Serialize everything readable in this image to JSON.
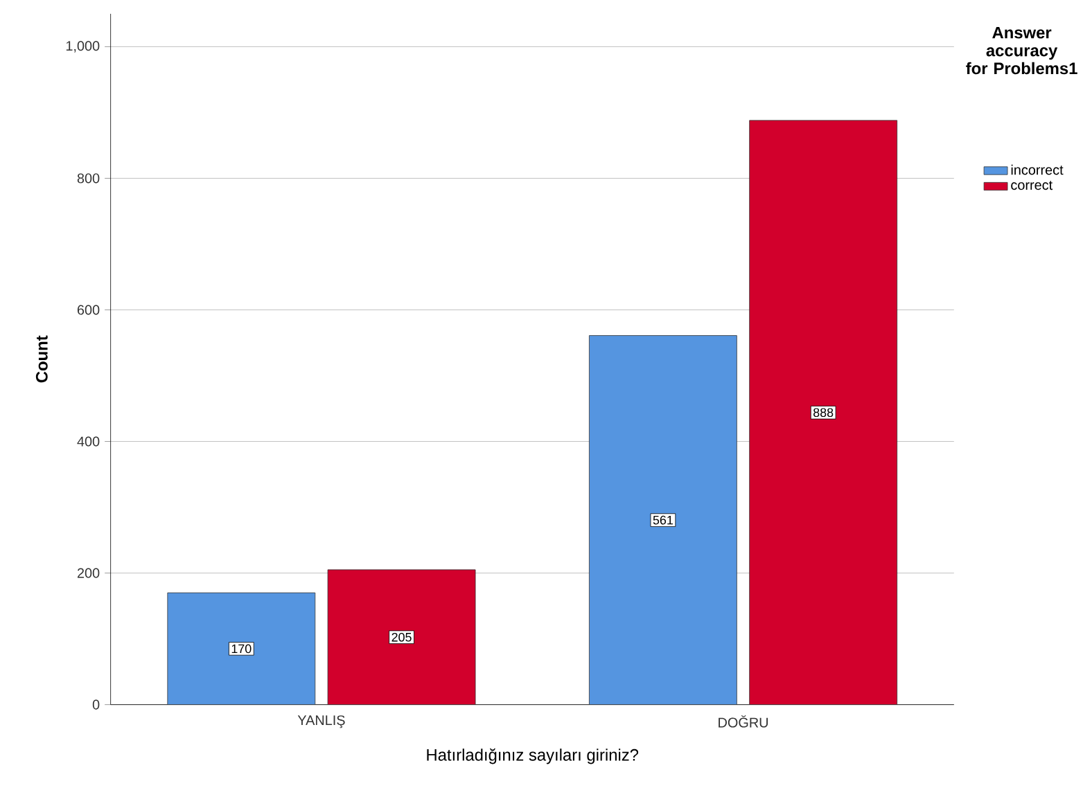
{
  "chart_data": {
    "type": "bar",
    "xlabel": "Hatırladığınız sayıları giriniz?",
    "ylabel": "Count",
    "legend_title": "Answer accuracy for Problems1",
    "categories": [
      "YANLIŞ",
      "DOĞRU"
    ],
    "series": [
      {
        "name": "incorrect",
        "color": "#5595e0",
        "values": [
          170,
          561
        ]
      },
      {
        "name": "correct",
        "color": "#d2002c",
        "values": [
          205,
          888
        ]
      }
    ],
    "ylim": [
      0,
      1050
    ],
    "yticks": [
      0,
      200,
      400,
      600,
      800,
      {
        "value": 1000,
        "label": "1,000"
      }
    ],
    "grid": "y",
    "legend": "top right",
    "data_labels": true
  }
}
